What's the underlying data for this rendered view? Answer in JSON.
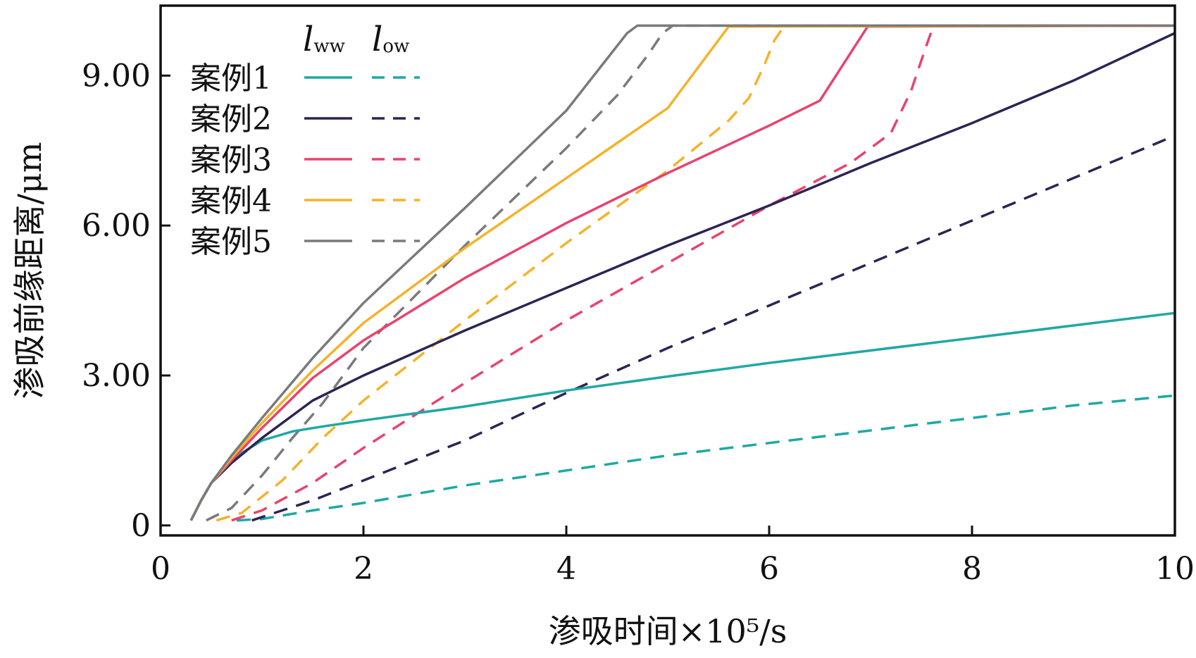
{
  "chart_data": {
    "type": "line",
    "title": "",
    "xlabel": "渗吸时间×10⁵/s",
    "ylabel": "渗吸前缘距离/μm",
    "xlim": [
      0,
      10
    ],
    "ylim": [
      -0.2,
      10.4
    ],
    "x_ticks": [
      0,
      2,
      4,
      6,
      8,
      10
    ],
    "x_tick_labels": [
      "0",
      "2",
      "4",
      "6",
      "8",
      "10"
    ],
    "y_ticks": [
      0,
      3,
      6,
      9
    ],
    "y_tick_labels": [
      "0",
      "3.00",
      "6.00",
      "9.00"
    ],
    "grid": false,
    "legend": {
      "position": "top-left",
      "column_headers": [
        "l_ww",
        "l_ow"
      ],
      "header_main": [
        "l",
        "l"
      ],
      "header_sub": [
        "ww",
        "ow"
      ]
    },
    "series": [
      {
        "name": "案例1",
        "color": "#1fa8a4",
        "lww": [
          [
            0.3,
            0.1
          ],
          [
            0.4,
            0.5
          ],
          [
            0.5,
            0.85
          ],
          [
            0.6,
            1.1
          ],
          [
            0.8,
            1.45
          ],
          [
            1.0,
            1.7
          ],
          [
            1.3,
            1.88
          ],
          [
            1.6,
            1.98
          ],
          [
            2.0,
            2.1
          ],
          [
            3.0,
            2.38
          ],
          [
            4.0,
            2.7
          ],
          [
            5.0,
            2.98
          ],
          [
            6.0,
            3.25
          ],
          [
            7.0,
            3.5
          ],
          [
            8.0,
            3.75
          ],
          [
            9.0,
            4.0
          ],
          [
            10.0,
            4.25
          ]
        ],
        "low": [
          [
            0.75,
            0.1
          ],
          [
            1.0,
            0.13
          ],
          [
            1.5,
            0.3
          ],
          [
            2.0,
            0.45
          ],
          [
            3.0,
            0.8
          ],
          [
            4.0,
            1.1
          ],
          [
            5.0,
            1.4
          ],
          [
            6.0,
            1.65
          ],
          [
            7.0,
            1.9
          ],
          [
            8.0,
            2.15
          ],
          [
            9.0,
            2.4
          ],
          [
            10.0,
            2.6
          ]
        ]
      },
      {
        "name": "案例2",
        "color": "#2e2354",
        "lww": [
          [
            0.3,
            0.1
          ],
          [
            0.4,
            0.5
          ],
          [
            0.5,
            0.85
          ],
          [
            0.7,
            1.25
          ],
          [
            1.0,
            1.75
          ],
          [
            1.5,
            2.5
          ],
          [
            2.0,
            3.0
          ],
          [
            3.0,
            3.9
          ],
          [
            4.0,
            4.75
          ],
          [
            5.0,
            5.6
          ],
          [
            6.0,
            6.4
          ],
          [
            7.0,
            7.25
          ],
          [
            8.0,
            8.05
          ],
          [
            9.0,
            8.9
          ],
          [
            10.0,
            9.85
          ]
        ],
        "low": [
          [
            0.9,
            0.1
          ],
          [
            1.2,
            0.3
          ],
          [
            1.5,
            0.5
          ],
          [
            2.0,
            0.9
          ],
          [
            3.0,
            1.7
          ],
          [
            4.0,
            2.65
          ],
          [
            5.0,
            3.55
          ],
          [
            6.0,
            4.4
          ],
          [
            7.0,
            5.25
          ],
          [
            8.0,
            6.1
          ],
          [
            9.0,
            6.95
          ],
          [
            10.0,
            7.8
          ]
        ]
      },
      {
        "name": "案例3",
        "color": "#e8436e",
        "lww": [
          [
            0.3,
            0.1
          ],
          [
            0.4,
            0.5
          ],
          [
            0.5,
            0.85
          ],
          [
            0.7,
            1.3
          ],
          [
            1.0,
            1.95
          ],
          [
            1.5,
            2.95
          ],
          [
            2.0,
            3.7
          ],
          [
            3.0,
            4.95
          ],
          [
            4.0,
            6.05
          ],
          [
            5.0,
            7.05
          ],
          [
            6.0,
            8.0
          ],
          [
            6.5,
            8.5
          ],
          [
            6.97,
            9.98
          ],
          [
            10.0,
            10.0
          ]
        ],
        "low": [
          [
            0.7,
            0.1
          ],
          [
            1.0,
            0.3
          ],
          [
            1.5,
            0.85
          ],
          [
            2.0,
            1.55
          ],
          [
            3.0,
            2.85
          ],
          [
            4.0,
            4.1
          ],
          [
            5.0,
            5.25
          ],
          [
            6.0,
            6.4
          ],
          [
            6.8,
            7.25
          ],
          [
            7.2,
            7.85
          ],
          [
            7.4,
            8.7
          ],
          [
            7.55,
            9.6
          ],
          [
            7.62,
            10.0
          ],
          [
            10.0,
            10.0
          ]
        ]
      },
      {
        "name": "案例4",
        "color": "#f5b229",
        "lww": [
          [
            0.3,
            0.1
          ],
          [
            0.4,
            0.5
          ],
          [
            0.5,
            0.85
          ],
          [
            0.7,
            1.35
          ],
          [
            1.0,
            2.05
          ],
          [
            1.5,
            3.1
          ],
          [
            2.0,
            4.05
          ],
          [
            3.0,
            5.55
          ],
          [
            4.0,
            6.95
          ],
          [
            5.0,
            8.35
          ],
          [
            5.6,
            9.98
          ],
          [
            10.0,
            10.0
          ]
        ],
        "low": [
          [
            0.55,
            0.1
          ],
          [
            0.8,
            0.25
          ],
          [
            1.2,
            0.9
          ],
          [
            1.6,
            1.75
          ],
          [
            2.0,
            2.5
          ],
          [
            3.0,
            4.1
          ],
          [
            4.0,
            5.65
          ],
          [
            5.0,
            7.1
          ],
          [
            5.6,
            8.1
          ],
          [
            5.8,
            8.55
          ],
          [
            5.95,
            9.2
          ],
          [
            6.05,
            9.7
          ],
          [
            6.15,
            10.0
          ],
          [
            10.0,
            10.0
          ]
        ]
      },
      {
        "name": "案例5",
        "color": "#7a7a7a",
        "lww": [
          [
            0.3,
            0.1
          ],
          [
            0.4,
            0.5
          ],
          [
            0.5,
            0.85
          ],
          [
            0.7,
            1.4
          ],
          [
            1.0,
            2.15
          ],
          [
            1.5,
            3.35
          ],
          [
            2.0,
            4.45
          ],
          [
            3.0,
            6.35
          ],
          [
            4.0,
            8.3
          ],
          [
            4.6,
            9.85
          ],
          [
            4.7,
            10.0
          ],
          [
            10.0,
            10.0
          ]
        ],
        "low": [
          [
            0.45,
            0.1
          ],
          [
            0.7,
            0.35
          ],
          [
            1.0,
            1.0
          ],
          [
            1.3,
            1.75
          ],
          [
            1.6,
            2.45
          ],
          [
            2.0,
            3.55
          ],
          [
            3.0,
            5.6
          ],
          [
            4.0,
            7.55
          ],
          [
            4.5,
            8.6
          ],
          [
            4.8,
            9.4
          ],
          [
            4.95,
            9.85
          ],
          [
            5.05,
            10.0
          ],
          [
            10.0,
            10.0
          ]
        ]
      }
    ]
  }
}
